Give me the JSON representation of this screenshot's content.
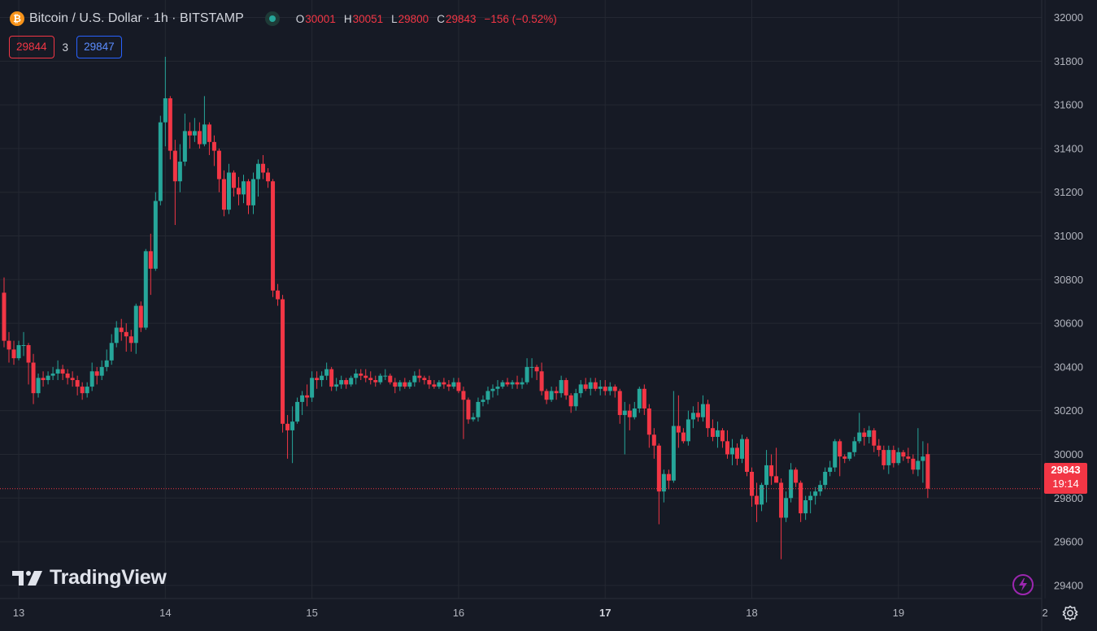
{
  "header": {
    "coin_symbol": "₿",
    "title": "Bitcoin / U.S. Dollar · 1h · BITSTAMP",
    "ohlc": {
      "open_label": "O",
      "open": "30001",
      "high_label": "H",
      "high": "30051",
      "low_label": "L",
      "low": "29800",
      "close_label": "C",
      "close": "29843",
      "change": "−156 (−0.52%)"
    }
  },
  "quote": {
    "bid": "29844",
    "spread": "3",
    "ask": "29847"
  },
  "watermark": "TradingView",
  "last_price": {
    "price": "29843",
    "countdown": "19:14"
  },
  "colors": {
    "up": "#26a69a",
    "down": "#f23645",
    "background": "#161a25",
    "grid": "#242832",
    "axis_text": "#b2b5be"
  },
  "icons": [
    "bitcoin-icon",
    "market-status-icon",
    "tradingview-logo-icon",
    "lightning-icon",
    "gear-icon"
  ],
  "chart_data": {
    "type": "candlestick",
    "timeframe": "1h",
    "y_ticks": [
      29400,
      29600,
      29800,
      30000,
      30200,
      30400,
      30600,
      30800,
      31000,
      31200,
      31400,
      31600,
      31800,
      32000
    ],
    "ylim": [
      29340,
      32080
    ],
    "x_ticks": [
      {
        "label": "13",
        "index": 3,
        "bold": false
      },
      {
        "label": "14",
        "index": 33,
        "bold": false
      },
      {
        "label": "15",
        "index": 63,
        "bold": false
      },
      {
        "label": "16",
        "index": 93,
        "bold": false
      },
      {
        "label": "17",
        "index": 123,
        "bold": true
      },
      {
        "label": "18",
        "index": 153,
        "bold": false
      },
      {
        "label": "19",
        "index": 183,
        "bold": false
      },
      {
        "label": "2",
        "index": 213,
        "bold": false
      }
    ],
    "last_price_line": 29843,
    "candles": [
      [
        30740,
        30810,
        30490,
        30520
      ],
      [
        30520,
        30560,
        30420,
        30480
      ],
      [
        30480,
        30520,
        30410,
        30440
      ],
      [
        30440,
        30520,
        30430,
        30500
      ],
      [
        30500,
        30560,
        30450,
        30500
      ],
      [
        30500,
        30510,
        30320,
        30420
      ],
      [
        30420,
        30460,
        30230,
        30280
      ],
      [
        30280,
        30370,
        30260,
        30350
      ],
      [
        30350,
        30380,
        30310,
        30340
      ],
      [
        30340,
        30380,
        30320,
        30360
      ],
      [
        30360,
        30400,
        30340,
        30370
      ],
      [
        30370,
        30430,
        30340,
        30390
      ],
      [
        30390,
        30410,
        30340,
        30370
      ],
      [
        30370,
        30390,
        30320,
        30350
      ],
      [
        30350,
        30380,
        30310,
        30340
      ],
      [
        30340,
        30360,
        30270,
        30310
      ],
      [
        30310,
        30330,
        30250,
        30280
      ],
      [
        30280,
        30330,
        30260,
        30310
      ],
      [
        30310,
        30420,
        30290,
        30380
      ],
      [
        30380,
        30400,
        30320,
        30360
      ],
      [
        30360,
        30430,
        30340,
        30400
      ],
      [
        30400,
        30480,
        30380,
        30430
      ],
      [
        30430,
        30550,
        30410,
        30510
      ],
      [
        30510,
        30610,
        30490,
        30580
      ],
      [
        30580,
        30620,
        30520,
        30560
      ],
      [
        30560,
        30600,
        30470,
        30540
      ],
      [
        30540,
        30570,
        30470,
        30510
      ],
      [
        30510,
        30690,
        30460,
        30680
      ],
      [
        30680,
        30700,
        30560,
        30580
      ],
      [
        30580,
        30940,
        30570,
        30930
      ],
      [
        30930,
        31010,
        30730,
        30850
      ],
      [
        30850,
        31200,
        30840,
        31160
      ],
      [
        31160,
        31550,
        31140,
        31520
      ],
      [
        31520,
        31820,
        31410,
        31630
      ],
      [
        31630,
        31640,
        31350,
        31390
      ],
      [
        31390,
        31440,
        31050,
        31250
      ],
      [
        31250,
        31420,
        31200,
        31340
      ],
      [
        31340,
        31560,
        31320,
        31480
      ],
      [
        31480,
        31520,
        31400,
        31460
      ],
      [
        31460,
        31540,
        31430,
        31480
      ],
      [
        31480,
        31520,
        31400,
        31420
      ],
      [
        31420,
        31640,
        31410,
        31510
      ],
      [
        31510,
        31520,
        31370,
        31430
      ],
      [
        31430,
        31460,
        31320,
        31390
      ],
      [
        31390,
        31400,
        31200,
        31260
      ],
      [
        31260,
        31300,
        31090,
        31120
      ],
      [
        31120,
        31330,
        31100,
        31290
      ],
      [
        31290,
        31300,
        31180,
        31220
      ],
      [
        31220,
        31270,
        31140,
        31190
      ],
      [
        31190,
        31280,
        31150,
        31250
      ],
      [
        31250,
        31260,
        31100,
        31140
      ],
      [
        31140,
        31290,
        31100,
        31260
      ],
      [
        31260,
        31350,
        31180,
        31330
      ],
      [
        31330,
        31370,
        31260,
        31290
      ],
      [
        31290,
        31310,
        31220,
        31250
      ],
      [
        31250,
        31260,
        30720,
        30750
      ],
      [
        30750,
        30780,
        30680,
        30710
      ],
      [
        30710,
        30730,
        30100,
        30140
      ],
      [
        30140,
        30180,
        29980,
        30110
      ],
      [
        30110,
        30220,
        29960,
        30150
      ],
      [
        30150,
        30260,
        30140,
        30240
      ],
      [
        30240,
        30290,
        30180,
        30270
      ],
      [
        30270,
        30320,
        30220,
        30260
      ],
      [
        30260,
        30380,
        30240,
        30350
      ],
      [
        30350,
        30380,
        30300,
        30340
      ],
      [
        30340,
        30380,
        30310,
        30360
      ],
      [
        30360,
        30420,
        30340,
        30390
      ],
      [
        30390,
        30400,
        30290,
        30310
      ],
      [
        30310,
        30350,
        30290,
        30320
      ],
      [
        30320,
        30360,
        30300,
        30340
      ],
      [
        30340,
        30350,
        30300,
        30320
      ],
      [
        30320,
        30360,
        30310,
        30350
      ],
      [
        30350,
        30390,
        30320,
        30370
      ],
      [
        30370,
        30390,
        30340,
        30360
      ],
      [
        30360,
        30390,
        30330,
        30350
      ],
      [
        30350,
        30380,
        30320,
        30340
      ],
      [
        30340,
        30360,
        30310,
        30330
      ],
      [
        30330,
        30370,
        30320,
        30360
      ],
      [
        30360,
        30390,
        30340,
        30360
      ],
      [
        30360,
        30370,
        30320,
        30330
      ],
      [
        30330,
        30350,
        30280,
        30310
      ],
      [
        30310,
        30340,
        30290,
        30330
      ],
      [
        30330,
        30350,
        30300,
        30310
      ],
      [
        30310,
        30340,
        30300,
        30330
      ],
      [
        30330,
        30380,
        30310,
        30360
      ],
      [
        30360,
        30390,
        30330,
        30350
      ],
      [
        30350,
        30360,
        30320,
        30340
      ],
      [
        30340,
        30360,
        30300,
        30320
      ],
      [
        30320,
        30340,
        30300,
        30310
      ],
      [
        30310,
        30340,
        30300,
        30330
      ],
      [
        30330,
        30350,
        30300,
        30320
      ],
      [
        30320,
        30340,
        30290,
        30310
      ],
      [
        30310,
        30350,
        30300,
        30330
      ],
      [
        30330,
        30350,
        30280,
        30290
      ],
      [
        30290,
        30310,
        30070,
        30250
      ],
      [
        30250,
        30260,
        30140,
        30160
      ],
      [
        30160,
        30190,
        30150,
        30170
      ],
      [
        30170,
        30260,
        30150,
        30240
      ],
      [
        30240,
        30270,
        30220,
        30250
      ],
      [
        30250,
        30310,
        30230,
        30290
      ],
      [
        30290,
        30320,
        30260,
        30300
      ],
      [
        30300,
        30340,
        30270,
        30310
      ],
      [
        30310,
        30340,
        30300,
        30330
      ],
      [
        30330,
        30350,
        30310,
        30320
      ],
      [
        30320,
        30340,
        30300,
        30330
      ],
      [
        30330,
        30360,
        30300,
        30320
      ],
      [
        30320,
        30350,
        30300,
        30330
      ],
      [
        30330,
        30440,
        30320,
        30400
      ],
      [
        30400,
        30440,
        30350,
        30400
      ],
      [
        30400,
        30410,
        30340,
        30380
      ],
      [
        30380,
        30420,
        30270,
        30290
      ],
      [
        30290,
        30300,
        30230,
        30250
      ],
      [
        30250,
        30310,
        30240,
        30290
      ],
      [
        30290,
        30310,
        30250,
        30280
      ],
      [
        30280,
        30360,
        30260,
        30340
      ],
      [
        30340,
        30350,
        30250,
        30270
      ],
      [
        30270,
        30280,
        30190,
        30220
      ],
      [
        30220,
        30300,
        30200,
        30280
      ],
      [
        30280,
        30340,
        30260,
        30320
      ],
      [
        30320,
        30350,
        30290,
        30300
      ],
      [
        30300,
        30350,
        30270,
        30330
      ],
      [
        30330,
        30350,
        30290,
        30300
      ],
      [
        30300,
        30340,
        30270,
        30310
      ],
      [
        30310,
        30340,
        30270,
        30290
      ],
      [
        30290,
        30330,
        30270,
        30310
      ],
      [
        30310,
        30320,
        30260,
        30290
      ],
      [
        30290,
        30300,
        30140,
        30180
      ],
      [
        30180,
        30240,
        30000,
        30200
      ],
      [
        30200,
        30230,
        30110,
        30170
      ],
      [
        30170,
        30240,
        30160,
        30210
      ],
      [
        30210,
        30310,
        30190,
        30300
      ],
      [
        30300,
        30320,
        30180,
        30210
      ],
      [
        30210,
        30230,
        30030,
        30090
      ],
      [
        30090,
        30120,
        29980,
        30040
      ],
      [
        30040,
        30050,
        29680,
        29830
      ],
      [
        29830,
        29930,
        29780,
        29910
      ],
      [
        29910,
        29930,
        29840,
        29880
      ],
      [
        29880,
        30290,
        29870,
        30130
      ],
      [
        30130,
        30270,
        30030,
        30100
      ],
      [
        30100,
        30120,
        30050,
        30060
      ],
      [
        30060,
        30200,
        30040,
        30160
      ],
      [
        30160,
        30220,
        30120,
        30190
      ],
      [
        30190,
        30240,
        30150,
        30170
      ],
      [
        30170,
        30270,
        30150,
        30230
      ],
      [
        30230,
        30250,
        30080,
        30120
      ],
      [
        30120,
        30160,
        30060,
        30080
      ],
      [
        30080,
        30150,
        30030,
        30110
      ],
      [
        30110,
        30120,
        30030,
        30060
      ],
      [
        30060,
        30110,
        29980,
        30000
      ],
      [
        30000,
        30070,
        29950,
        30030
      ],
      [
        30030,
        30050,
        29950,
        29980
      ],
      [
        29980,
        30090,
        29960,
        30070
      ],
      [
        30070,
        30080,
        29900,
        29920
      ],
      [
        29920,
        29940,
        29760,
        29810
      ],
      [
        29810,
        29870,
        29690,
        29770
      ],
      [
        29770,
        29870,
        29740,
        29860
      ],
      [
        29860,
        30020,
        29780,
        29950
      ],
      [
        29950,
        30000,
        29860,
        29900
      ],
      [
        29900,
        30030,
        29890,
        29870
      ],
      [
        29870,
        29890,
        29520,
        29710
      ],
      [
        29710,
        29830,
        29690,
        29800
      ],
      [
        29800,
        29960,
        29780,
        29930
      ],
      [
        29930,
        29940,
        29850,
        29870
      ],
      [
        29870,
        29880,
        29690,
        29730
      ],
      [
        29730,
        29810,
        29700,
        29790
      ],
      [
        29790,
        29830,
        29730,
        29810
      ],
      [
        29810,
        29850,
        29770,
        29830
      ],
      [
        29830,
        29880,
        29810,
        29860
      ],
      [
        29860,
        29940,
        29840,
        29920
      ],
      [
        29920,
        29970,
        29900,
        29940
      ],
      [
        29940,
        30070,
        29920,
        30060
      ],
      [
        30060,
        30070,
        29900,
        29990
      ],
      [
        29990,
        30000,
        29960,
        29980
      ],
      [
        29980,
        30010,
        29970,
        30010
      ],
      [
        30010,
        30080,
        29990,
        30060
      ],
      [
        30060,
        30190,
        30050,
        30100
      ],
      [
        30100,
        30120,
        30040,
        30080
      ],
      [
        30080,
        30130,
        30050,
        30110
      ],
      [
        30110,
        30120,
        30010,
        30040
      ],
      [
        30040,
        30070,
        29990,
        30020
      ],
      [
        30020,
        30040,
        29930,
        29950
      ],
      [
        29950,
        30040,
        29910,
        30020
      ],
      [
        30020,
        30040,
        29940,
        29960
      ],
      [
        29960,
        30030,
        29950,
        30010
      ],
      [
        30010,
        30020,
        29970,
        29990
      ],
      [
        29990,
        30030,
        29960,
        29980
      ],
      [
        29980,
        30000,
        29910,
        29930
      ],
      [
        29930,
        30120,
        29900,
        29970
      ],
      [
        29970,
        30060,
        29870,
        29990
      ],
      [
        30001,
        30051,
        29800,
        29843
      ]
    ]
  }
}
